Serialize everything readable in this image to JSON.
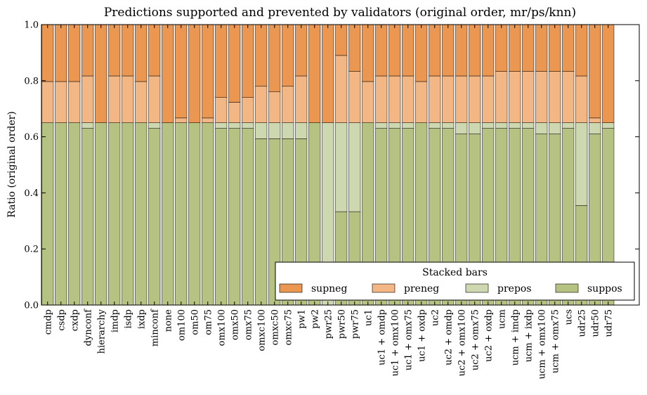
{
  "chart_data": {
    "type": "bar",
    "stacked": true,
    "title": "Predictions supported and prevented by validators (original order, mr/ps/knn)",
    "xlabel": "",
    "ylabel": "Ratio (original order)",
    "ylim": [
      0,
      1.0
    ],
    "yticks": [
      "0.0",
      "0.2",
      "0.4",
      "0.6",
      "0.8",
      "1.0"
    ],
    "grid": false,
    "legend": {
      "title": "Stacked bars",
      "placement": "bottom-right",
      "columns": 4
    },
    "categories": [
      "cmdp",
      "csdp",
      "cxdp",
      "dynconf",
      "hierarchy",
      "imdp",
      "isdp",
      "ixdp",
      "minconf",
      "none",
      "om100",
      "om50",
      "om75",
      "omx100",
      "omx50",
      "omx75",
      "omxc100",
      "omxc50",
      "omxc75",
      "pw1",
      "pw2",
      "pwr25",
      "pwr50",
      "pwr75",
      "uc1",
      "uc1 + omdp",
      "uc1 + omx100",
      "uc1 + omx75",
      "uc1 + oxdp",
      "uc2",
      "uc2 + omdp",
      "uc2 + omx100",
      "uc2 + omx75",
      "uc2 + oxdp",
      "ucm",
      "ucm + imdp",
      "ucm + ixdp",
      "ucm + omx100",
      "ucm + omx75",
      "ucs",
      "udr25",
      "udr50",
      "udr75"
    ],
    "series": [
      {
        "name": "suppos",
        "color": "#b5c282",
        "values": [
          0.65,
          0.65,
          0.65,
          0.63,
          0.65,
          0.65,
          0.65,
          0.65,
          0.63,
          0.65,
          0.65,
          0.65,
          0.65,
          0.63,
          0.63,
          0.63,
          0.593,
          0.593,
          0.593,
          0.593,
          0.65,
          0.0,
          0.333,
          0.333,
          0.65,
          0.63,
          0.63,
          0.63,
          0.65,
          0.63,
          0.63,
          0.61,
          0.61,
          0.63,
          0.63,
          0.63,
          0.63,
          0.61,
          0.61,
          0.63,
          0.355,
          0.61,
          0.63
        ]
      },
      {
        "name": "prepos",
        "color": "#cdd8b0",
        "values": [
          0,
          0,
          0,
          0.02,
          0,
          0,
          0,
          0,
          0.02,
          0,
          0,
          0,
          0,
          0.02,
          0.02,
          0.02,
          0.057,
          0.057,
          0.057,
          0.057,
          0,
          0.65,
          0.317,
          0.317,
          0,
          0.02,
          0.02,
          0.02,
          0,
          0.02,
          0.02,
          0.04,
          0.04,
          0.02,
          0.02,
          0.02,
          0.02,
          0.04,
          0.04,
          0.02,
          0.295,
          0.04,
          0.02
        ]
      },
      {
        "name": "preneg",
        "color": "#f2b785",
        "values": [
          0.147,
          0.147,
          0.147,
          0.167,
          0,
          0.167,
          0.167,
          0.147,
          0.167,
          0,
          0.017,
          0,
          0.017,
          0.09,
          0.073,
          0.09,
          0.13,
          0.11,
          0.13,
          0.167,
          0,
          0,
          0.24,
          0.183,
          0.147,
          0.167,
          0.167,
          0.167,
          0.147,
          0.167,
          0.167,
          0.167,
          0.167,
          0.167,
          0.183,
          0.183,
          0.183,
          0.183,
          0.183,
          0.183,
          0.167,
          0.017,
          0
        ]
      },
      {
        "name": "supneg",
        "color": "#eb9651",
        "values": [
          0.203,
          0.203,
          0.203,
          0.183,
          0.35,
          0.183,
          0.183,
          0.203,
          0.183,
          0.35,
          0.333,
          0.35,
          0.333,
          0.26,
          0.277,
          0.26,
          0.22,
          0.24,
          0.22,
          0.183,
          0.35,
          0.35,
          0.11,
          0.167,
          0.203,
          0.183,
          0.183,
          0.183,
          0.203,
          0.183,
          0.183,
          0.183,
          0.183,
          0.183,
          0.167,
          0.167,
          0.167,
          0.167,
          0.167,
          0.167,
          0.183,
          0.333,
          0.35
        ]
      }
    ],
    "legend_order": [
      "supneg",
      "preneg",
      "prepos",
      "suppos"
    ]
  }
}
